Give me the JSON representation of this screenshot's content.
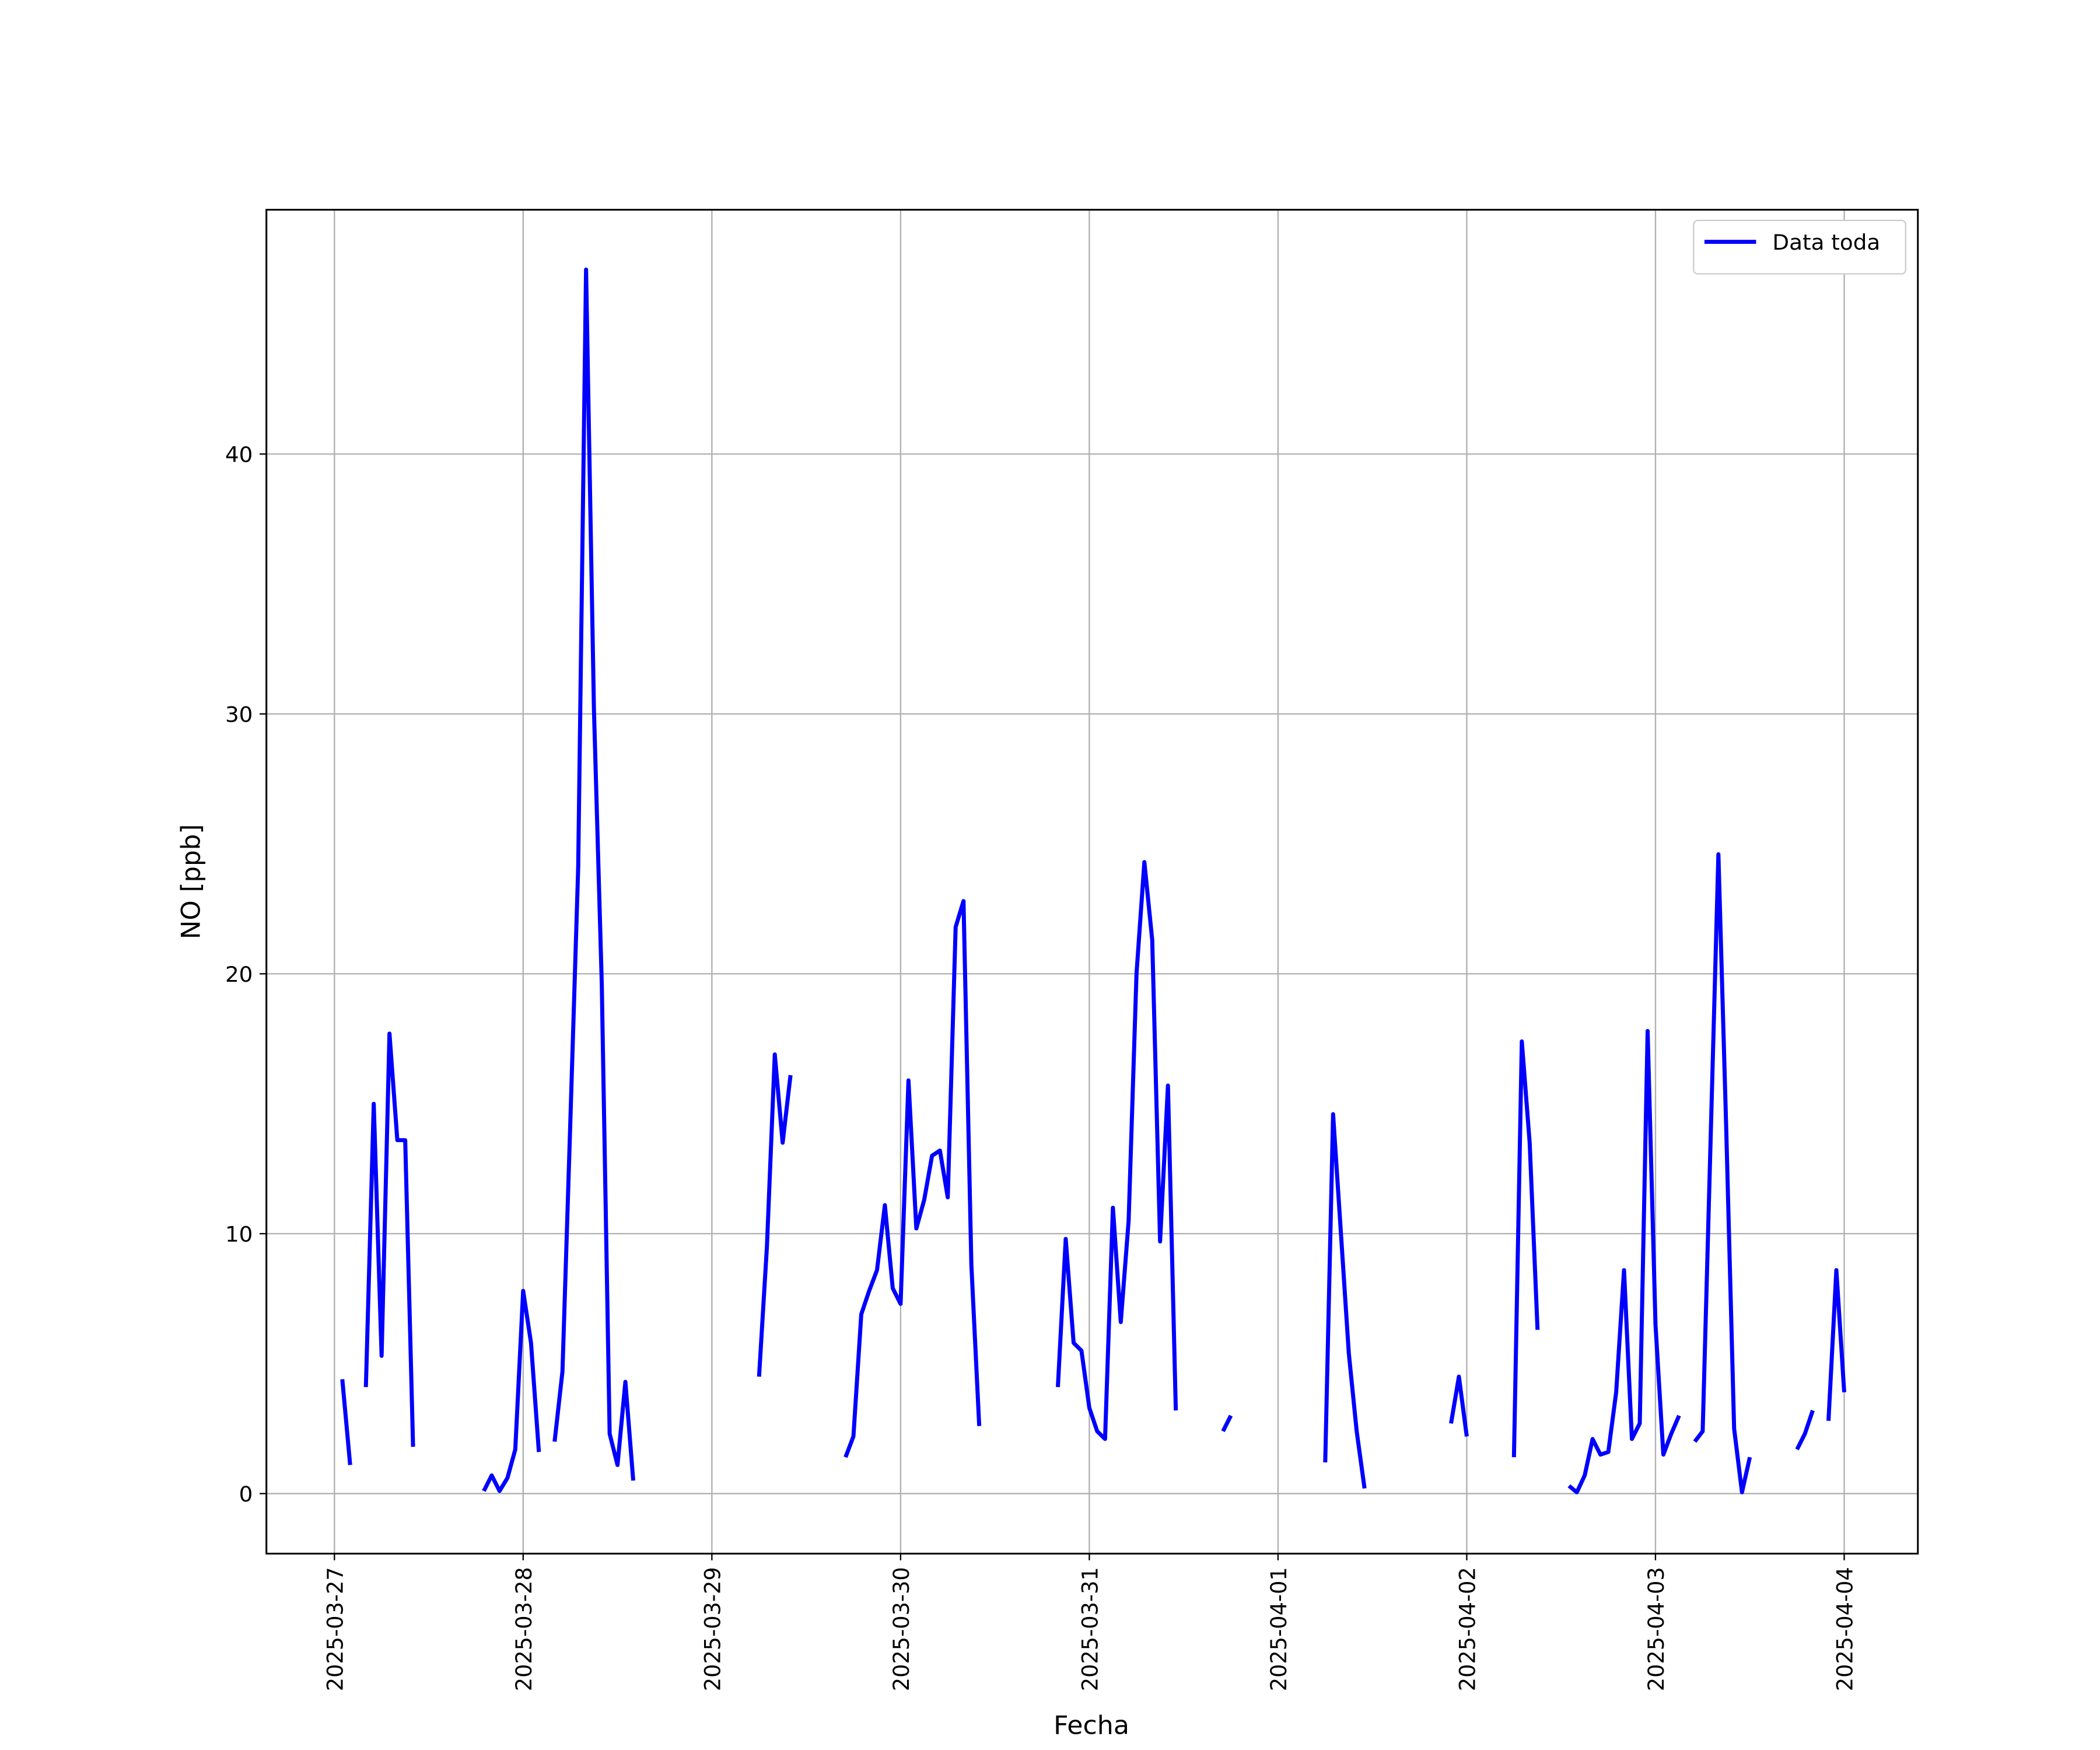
{
  "chart_data": {
    "type": "line",
    "xlabel": "Fecha",
    "ylabel": "NO [ppb]",
    "x": [
      "2025-03-27 01:00",
      "2025-03-27 02:00",
      "2025-03-27 03:00",
      "2025-03-27 04:00",
      "2025-03-27 05:00",
      "2025-03-27 06:00",
      "2025-03-27 07:00",
      "2025-03-27 08:00",
      "2025-03-27 09:00",
      "2025-03-27 10:00",
      "2025-03-27 11:00",
      "2025-03-27 19:00",
      "2025-03-27 20:00",
      "2025-03-27 21:00",
      "2025-03-27 22:00",
      "2025-03-27 23:00",
      "2025-03-28 00:00",
      "2025-03-28 01:00",
      "2025-03-28 02:00",
      "2025-03-28 03:00",
      "2025-03-28 04:00",
      "2025-03-28 05:00",
      "2025-03-28 06:00",
      "2025-03-28 07:00",
      "2025-03-28 08:00",
      "2025-03-28 09:00",
      "2025-03-28 10:00",
      "2025-03-28 11:00",
      "2025-03-28 12:00",
      "2025-03-28 13:00",
      "2025-03-28 14:00",
      "2025-03-28 15:00",
      "2025-03-29 06:00",
      "2025-03-29 07:00",
      "2025-03-29 08:00",
      "2025-03-29 09:00",
      "2025-03-29 10:00",
      "2025-03-29 11:00",
      "2025-03-29 17:00",
      "2025-03-29 18:00",
      "2025-03-29 19:00",
      "2025-03-29 20:00",
      "2025-03-29 21:00",
      "2025-03-29 22:00",
      "2025-03-29 23:00",
      "2025-03-30 00:00",
      "2025-03-30 01:00",
      "2025-03-30 02:00",
      "2025-03-30 03:00",
      "2025-03-30 04:00",
      "2025-03-30 05:00",
      "2025-03-30 06:00",
      "2025-03-30 07:00",
      "2025-03-30 08:00",
      "2025-03-30 09:00",
      "2025-03-30 10:00",
      "2025-03-30 11:00",
      "2025-03-30 20:00",
      "2025-03-30 21:00",
      "2025-03-30 22:00",
      "2025-03-30 23:00",
      "2025-03-31 00:00",
      "2025-03-31 01:00",
      "2025-03-31 02:00",
      "2025-03-31 03:00",
      "2025-03-31 04:00",
      "2025-03-31 05:00",
      "2025-03-31 06:00",
      "2025-03-31 07:00",
      "2025-03-31 08:00",
      "2025-03-31 09:00",
      "2025-03-31 10:00",
      "2025-03-31 11:00",
      "2025-03-31 12:00",
      "2025-03-31 17:00",
      "2025-03-31 18:00",
      "2025-03-31 19:00",
      "2025-04-01 06:00",
      "2025-04-01 07:00",
      "2025-04-01 08:00",
      "2025-04-01 09:00",
      "2025-04-01 10:00",
      "2025-04-01 11:00",
      "2025-04-01 12:00",
      "2025-04-01 22:00",
      "2025-04-01 23:00",
      "2025-04-02 00:00",
      "2025-04-02 01:00",
      "2025-04-02 06:00",
      "2025-04-02 07:00",
      "2025-04-02 08:00",
      "2025-04-02 09:00",
      "2025-04-02 10:00",
      "2025-04-02 13:00",
      "2025-04-02 14:00",
      "2025-04-02 15:00",
      "2025-04-02 16:00",
      "2025-04-02 17:00",
      "2025-04-02 18:00",
      "2025-04-02 19:00",
      "2025-04-02 20:00",
      "2025-04-02 21:00",
      "2025-04-02 22:00",
      "2025-04-02 23:00",
      "2025-04-03 00:00",
      "2025-04-03 01:00",
      "2025-04-03 02:00",
      "2025-04-03 03:00",
      "2025-04-03 04:00",
      "2025-04-03 05:00",
      "2025-04-03 06:00",
      "2025-04-03 07:00",
      "2025-04-03 08:00",
      "2025-04-03 09:00",
      "2025-04-03 10:00",
      "2025-04-03 11:00",
      "2025-04-03 12:00",
      "2025-04-03 13:00",
      "2025-04-03 18:00",
      "2025-04-03 19:00",
      "2025-04-03 20:00",
      "2025-04-03 21:00",
      "2025-04-03 22:00",
      "2025-04-03 23:00",
      "2025-04-04 00:00"
    ],
    "series": [
      {
        "name": "Data toda",
        "color": "#0000ff",
        "values": [
          4.4,
          1.1,
          null,
          4.1,
          15.0,
          5.3,
          17.7,
          13.6,
          13.6,
          1.8,
          null,
          0.1,
          0.7,
          0.1,
          0.6,
          1.7,
          7.8,
          5.8,
          1.6,
          null,
          2.0,
          4.7,
          14.3,
          24.1,
          47.1,
          30.2,
          19.6,
          2.3,
          1.1,
          4.3,
          0.5,
          null,
          4.5,
          9.5,
          16.9,
          13.5,
          16.1,
          null,
          1.4,
          2.2,
          6.9,
          7.8,
          8.6,
          11.1,
          7.9,
          7.3,
          15.9,
          10.2,
          11.3,
          13.0,
          13.2,
          11.4,
          21.8,
          22.8,
          8.8,
          2.6,
          null,
          4.1,
          9.8,
          5.8,
          5.5,
          3.3,
          2.4,
          2.1,
          11.0,
          6.6,
          10.5,
          20.0,
          24.3,
          21.3,
          9.7,
          15.7,
          3.2,
          null,
          2.4,
          3.0,
          null,
          1.2,
          14.6,
          10.0,
          5.4,
          2.4,
          0.2,
          null,
          2.7,
          4.5,
          2.2,
          null,
          1.4,
          17.4,
          13.5,
          6.3,
          null,
          0.3,
          0.05,
          0.7,
          2.1,
          1.5,
          1.6,
          3.9,
          8.6,
          2.1,
          2.7,
          17.8,
          6.5,
          1.5,
          2.3,
          3.0,
          null,
          2.0,
          2.4,
          13.5,
          24.6,
          14.0,
          2.5,
          0.05,
          1.4,
          null,
          1.7,
          2.3,
          3.2,
          null,
          2.8,
          8.6,
          3.9
        ]
      }
    ],
    "xlim": [
      "2025-03-26 15:21",
      "2025-04-04 09:22"
    ],
    "xticks": [
      "2025-03-27",
      "2025-03-28",
      "2025-03-29",
      "2025-03-30",
      "2025-03-31",
      "2025-04-01",
      "2025-04-02",
      "2025-04-03",
      "2025-04-04"
    ],
    "ylim": [
      -2.31,
      49.4
    ],
    "yticks": [
      0,
      10,
      20,
      30,
      40
    ],
    "grid": true,
    "legend": "upper right"
  }
}
